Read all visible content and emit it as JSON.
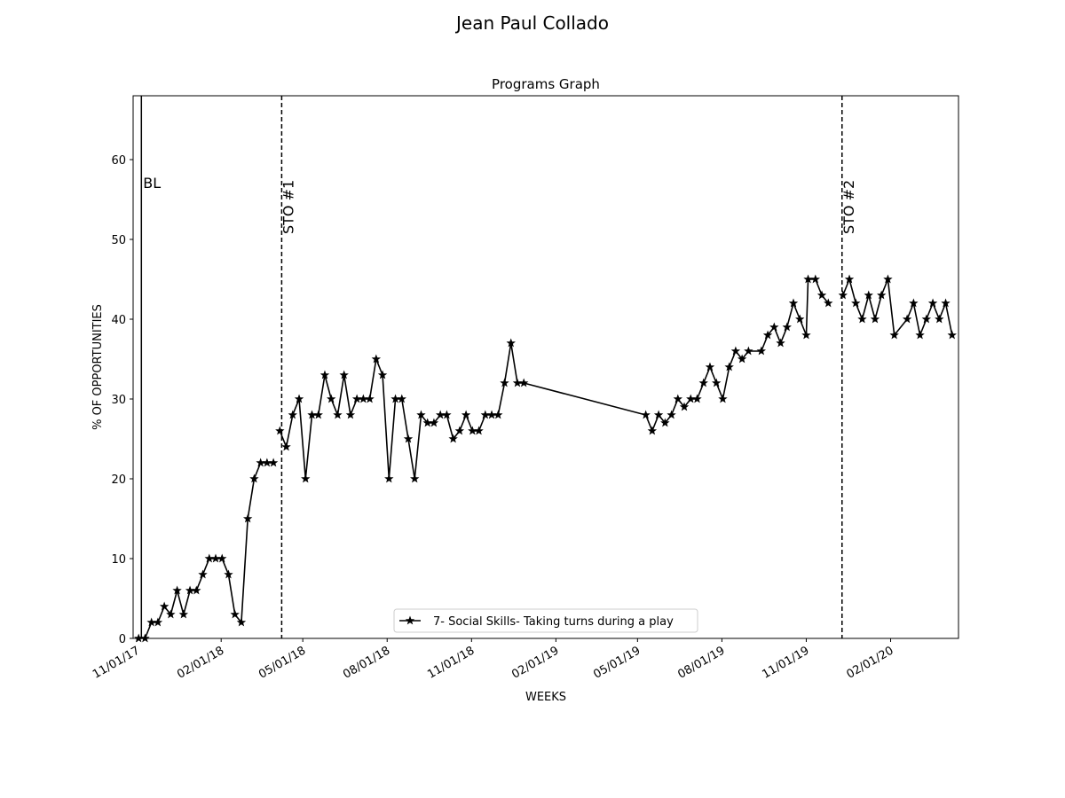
{
  "figure_title": "Jean Paul  Collado",
  "chart_data": {
    "type": "line",
    "title": "Programs Graph",
    "xlabel": "WEEKS",
    "ylabel": "% OF OPPORTUNITIES",
    "ylim": [
      0,
      68
    ],
    "yticks": [
      0,
      10,
      20,
      30,
      40,
      50,
      60
    ],
    "xlim": [
      "2017-10-28",
      "2020-04-15"
    ],
    "xticks": [
      {
        "date": "2017-11-01",
        "label": "11/01/17"
      },
      {
        "date": "2018-02-01",
        "label": "02/01/18"
      },
      {
        "date": "2018-05-01",
        "label": "05/01/18"
      },
      {
        "date": "2018-08-01",
        "label": "08/01/18"
      },
      {
        "date": "2018-11-01",
        "label": "11/01/18"
      },
      {
        "date": "2019-02-01",
        "label": "02/01/19"
      },
      {
        "date": "2019-05-01",
        "label": "05/01/19"
      },
      {
        "date": "2019-08-01",
        "label": "08/01/19"
      },
      {
        "date": "2019-11-01",
        "label": "11/01/19"
      },
      {
        "date": "2020-02-01",
        "label": "02/01/20"
      }
    ],
    "phase_lines": [
      {
        "date": "2017-11-06",
        "label": "BL",
        "style": "solid"
      },
      {
        "date": "2018-04-08",
        "label": "STO #1",
        "style": "dashed"
      },
      {
        "date": "2019-12-10",
        "label": "STO #2",
        "style": "dashed"
      }
    ],
    "legend": {
      "location": "lower-center"
    },
    "series": [
      {
        "name": "7- Social Skills- Taking turns during a play",
        "marker": "star",
        "color": "#000000",
        "points": [
          [
            "2017-11-03",
            0
          ],
          [
            "2017-11-10",
            0
          ],
          [
            "2017-11-17",
            2
          ],
          [
            "2017-11-24",
            2
          ],
          [
            "2017-12-01",
            4
          ],
          [
            "2017-12-08",
            3
          ],
          [
            "2017-12-15",
            6
          ],
          [
            "2017-12-22",
            3
          ],
          [
            "2017-12-29",
            6
          ],
          [
            "2018-01-05",
            6
          ],
          [
            "2018-01-12",
            8
          ],
          [
            "2018-01-19",
            10
          ],
          [
            "2018-01-26",
            10
          ],
          [
            "2018-02-02",
            10
          ],
          [
            "2018-02-09",
            8
          ],
          [
            "2018-02-16",
            3
          ],
          [
            "2018-02-23",
            2
          ],
          [
            "2018-03-02",
            15
          ],
          [
            "2018-03-09",
            20
          ],
          [
            "2018-03-16",
            22
          ],
          [
            "2018-03-23",
            22
          ],
          [
            "2018-03-30",
            22
          ]
        ]
      },
      {
        "name": "7- Social Skills- Taking turns during a play",
        "marker": "star",
        "color": "#000000",
        "hide_legend": true,
        "points": [
          [
            "2018-04-06",
            26
          ],
          [
            "2018-04-13",
            24
          ],
          [
            "2018-04-20",
            28
          ],
          [
            "2018-04-27",
            30
          ],
          [
            "2018-05-04",
            20
          ],
          [
            "2018-05-11",
            28
          ],
          [
            "2018-05-18",
            28
          ],
          [
            "2018-05-25",
            33
          ],
          [
            "2018-06-01",
            30
          ],
          [
            "2018-06-08",
            28
          ],
          [
            "2018-06-15",
            33
          ],
          [
            "2018-06-22",
            28
          ],
          [
            "2018-06-29",
            30
          ],
          [
            "2018-07-06",
            30
          ],
          [
            "2018-07-13",
            30
          ],
          [
            "2018-07-20",
            35
          ],
          [
            "2018-07-27",
            33
          ],
          [
            "2018-08-03",
            20
          ],
          [
            "2018-08-10",
            30
          ],
          [
            "2018-08-17",
            30
          ],
          [
            "2018-08-24",
            25
          ],
          [
            "2018-08-31",
            20
          ],
          [
            "2018-09-07",
            28
          ],
          [
            "2018-09-14",
            27
          ],
          [
            "2018-09-21",
            27
          ],
          [
            "2018-09-28",
            28
          ],
          [
            "2018-10-05",
            28
          ],
          [
            "2018-10-12",
            25
          ],
          [
            "2018-10-19",
            26
          ],
          [
            "2018-10-26",
            28
          ],
          [
            "2018-11-02",
            26
          ],
          [
            "2018-11-09",
            26
          ],
          [
            "2018-11-16",
            28
          ],
          [
            "2018-11-23",
            28
          ],
          [
            "2018-11-30",
            28
          ],
          [
            "2018-12-07",
            32
          ],
          [
            "2018-12-14",
            37
          ],
          [
            "2018-12-21",
            32
          ],
          [
            "2018-12-28",
            32
          ],
          [
            "2019-05-10",
            28
          ],
          [
            "2019-05-17",
            26
          ],
          [
            "2019-05-24",
            28
          ],
          [
            "2019-05-31",
            27
          ],
          [
            "2019-06-07",
            28
          ],
          [
            "2019-06-14",
            30
          ],
          [
            "2019-06-21",
            29
          ],
          [
            "2019-06-28",
            30
          ],
          [
            "2019-07-05",
            30
          ],
          [
            "2019-07-12",
            32
          ],
          [
            "2019-07-19",
            34
          ],
          [
            "2019-07-26",
            32
          ],
          [
            "2019-08-02",
            30
          ],
          [
            "2019-08-09",
            34
          ],
          [
            "2019-08-16",
            36
          ],
          [
            "2019-08-23",
            35
          ],
          [
            "2019-08-30",
            36
          ],
          [
            "2019-09-13",
            36
          ],
          [
            "2019-09-20",
            38
          ],
          [
            "2019-09-27",
            39
          ],
          [
            "2019-10-04",
            37
          ],
          [
            "2019-10-11",
            39
          ],
          [
            "2019-10-18",
            42
          ],
          [
            "2019-10-25",
            40
          ],
          [
            "2019-11-01",
            38
          ],
          [
            "2019-11-03",
            45
          ],
          [
            "2019-11-11",
            45
          ],
          [
            "2019-11-18",
            43
          ],
          [
            "2019-11-25",
            42
          ]
        ]
      },
      {
        "name": "7- Social Skills- Taking turns during a play",
        "marker": "star",
        "color": "#000000",
        "hide_legend": true,
        "points": [
          [
            "2019-12-11",
            43
          ],
          [
            "2019-12-18",
            45
          ],
          [
            "2019-12-25",
            42
          ],
          [
            "2020-01-01",
            40
          ],
          [
            "2020-01-08",
            43
          ],
          [
            "2020-01-15",
            40
          ],
          [
            "2020-01-22",
            43
          ],
          [
            "2020-01-29",
            45
          ],
          [
            "2020-02-05",
            38
          ],
          [
            "2020-02-19",
            40
          ],
          [
            "2020-02-26",
            42
          ],
          [
            "2020-03-04",
            38
          ],
          [
            "2020-03-11",
            40
          ],
          [
            "2020-03-18",
            42
          ],
          [
            "2020-03-25",
            40
          ],
          [
            "2020-04-01",
            42
          ],
          [
            "2020-04-08",
            38
          ]
        ]
      }
    ]
  }
}
